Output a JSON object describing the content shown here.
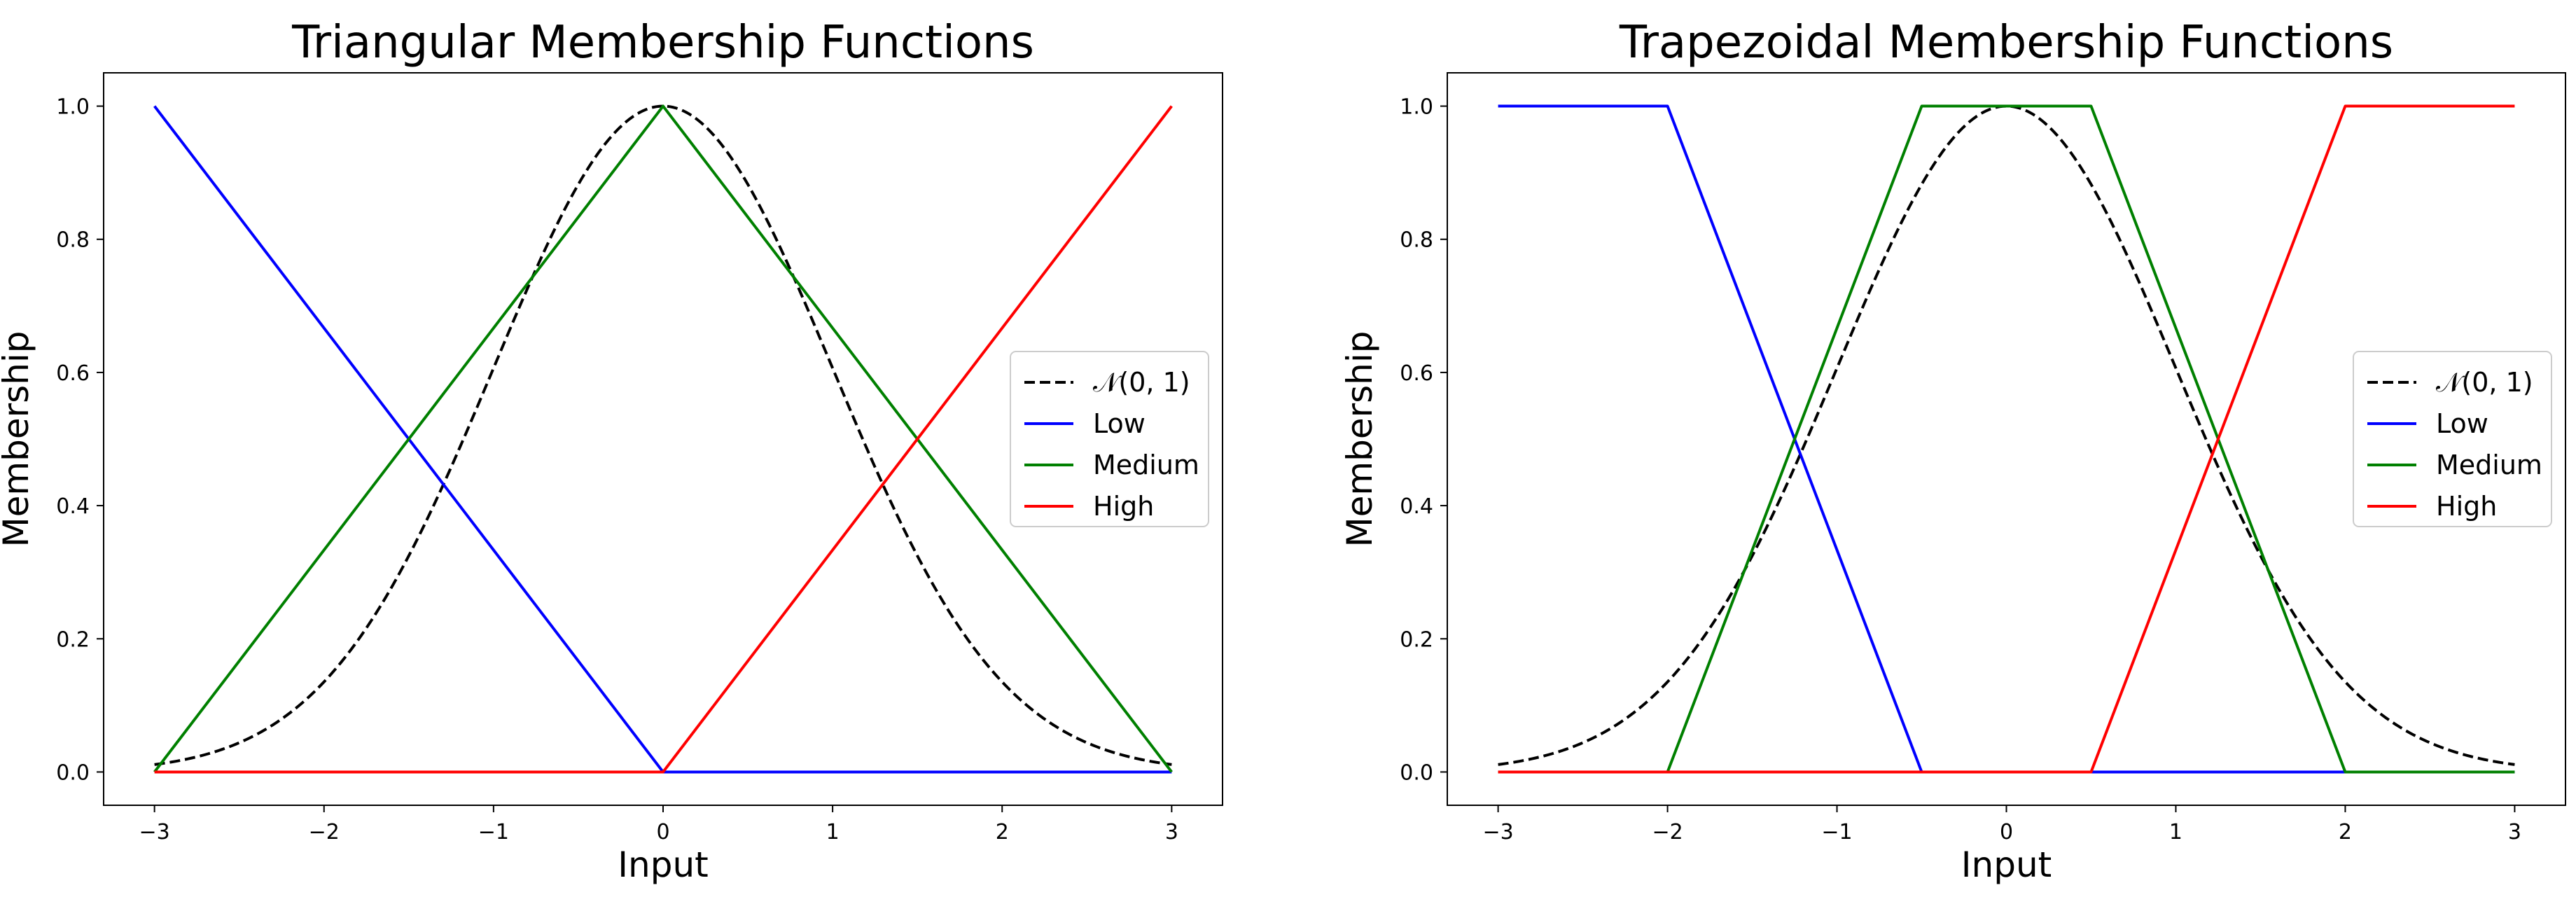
{
  "chart_data": [
    {
      "type": "line",
      "title": "Triangular Membership Functions",
      "xlabel": "Input",
      "ylabel": "Membership",
      "xlim": [
        -3.3,
        3.3
      ],
      "ylim": [
        -0.05,
        1.05
      ],
      "xticks": [
        -3,
        -2,
        -1,
        0,
        1,
        2,
        3
      ],
      "xtick_labels": [
        "−3",
        "−2",
        "−1",
        "0",
        "1",
        "2",
        "3"
      ],
      "yticks": [
        0.0,
        0.2,
        0.4,
        0.6,
        0.8,
        1.0
      ],
      "ytick_labels": [
        "0.0",
        "0.2",
        "0.4",
        "0.6",
        "0.8",
        "1.0"
      ],
      "grid": false,
      "legend_position": "center-right",
      "series": [
        {
          "name": "𝒩(0, 1)",
          "style": "dashed",
          "color": "#000000",
          "function": "normal_pdf_scaled",
          "x_range": [
            -3,
            3
          ]
        },
        {
          "name": "Low",
          "style": "solid",
          "color": "#0000ff",
          "x": [
            -3,
            0,
            3
          ],
          "y": [
            1,
            0,
            0
          ]
        },
        {
          "name": "Medium",
          "style": "solid",
          "color": "#008000",
          "x": [
            -3,
            0,
            3
          ],
          "y": [
            0,
            1,
            0
          ]
        },
        {
          "name": "High",
          "style": "solid",
          "color": "#ff0000",
          "x": [
            -3,
            0,
            3
          ],
          "y": [
            0,
            0,
            1
          ]
        }
      ]
    },
    {
      "type": "line",
      "title": "Trapezoidal Membership Functions",
      "xlabel": "Input",
      "ylabel": "Membership",
      "xlim": [
        -3.3,
        3.3
      ],
      "ylim": [
        -0.05,
        1.05
      ],
      "xticks": [
        -3,
        -2,
        -1,
        0,
        1,
        2,
        3
      ],
      "xtick_labels": [
        "−3",
        "−2",
        "−1",
        "0",
        "1",
        "2",
        "3"
      ],
      "yticks": [
        0.0,
        0.2,
        0.4,
        0.6,
        0.8,
        1.0
      ],
      "ytick_labels": [
        "0.0",
        "0.2",
        "0.4",
        "0.6",
        "0.8",
        "1.0"
      ],
      "grid": false,
      "legend_position": "center-right",
      "series": [
        {
          "name": "𝒩(0, 1)",
          "style": "dashed",
          "color": "#000000",
          "function": "normal_pdf_scaled",
          "x_range": [
            -3,
            3
          ]
        },
        {
          "name": "Low",
          "style": "solid",
          "color": "#0000ff",
          "x": [
            -3,
            -2,
            -0.5,
            3
          ],
          "y": [
            1,
            1,
            0,
            0
          ]
        },
        {
          "name": "Medium",
          "style": "solid",
          "color": "#008000",
          "x": [
            -3,
            -2,
            -0.5,
            0.5,
            2,
            3
          ],
          "y": [
            0,
            0,
            1,
            1,
            0,
            0
          ]
        },
        {
          "name": "High",
          "style": "solid",
          "color": "#ff0000",
          "x": [
            -3,
            0.5,
            2,
            3
          ],
          "y": [
            0,
            0,
            1,
            1
          ]
        }
      ]
    }
  ]
}
